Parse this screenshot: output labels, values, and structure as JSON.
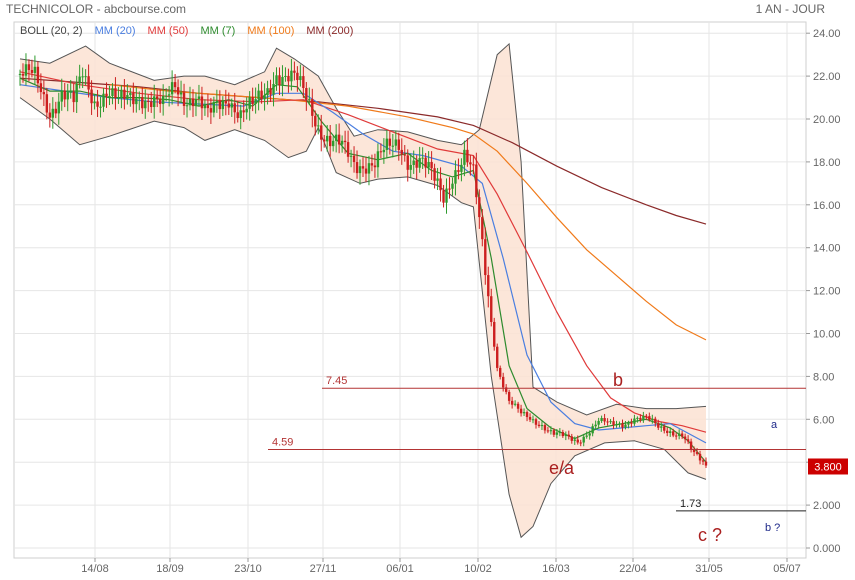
{
  "header": {
    "title": "TECHNICOLOR - abcbourse.com",
    "period": "1 AN - JOUR"
  },
  "chart_data": {
    "type": "line",
    "legend": [
      {
        "name": "BOLL (20, 2)",
        "color": "#555555"
      },
      {
        "name": "MM (20)",
        "color": "#4a7ee0"
      },
      {
        "name": "MM (50)",
        "color": "#e03a3a"
      },
      {
        "name": "MM (7)",
        "color": "#2e8b2e"
      },
      {
        "name": "MM (100)",
        "color": "#f07a1a"
      },
      {
        "name": "MM (200)",
        "color": "#8b2a2a"
      }
    ],
    "x_ticks": [
      "14/08",
      "18/09",
      "23/10",
      "27/11",
      "06/01",
      "10/02",
      "16/03",
      "22/04",
      "31/05",
      "05/07"
    ],
    "y_ticks": [
      0.0,
      2.0,
      4.0,
      6.0,
      8.0,
      10.0,
      12.0,
      14.0,
      16.0,
      18.0,
      20.0,
      22.0,
      24.0
    ],
    "y_tick_labels": [
      "0.000",
      "2.000",
      "4.000",
      "6.00",
      "8.00",
      "10.00",
      "12.00",
      "14.00",
      "16.00",
      "18.00",
      "20.00",
      "22.00",
      "24.00"
    ],
    "ylim": [
      0,
      24.8
    ],
    "last_price": "3.800",
    "colors": {
      "up": "#2e9a2e",
      "down": "#cc1f1f",
      "band": "#fbe2d2",
      "level": "#b33434",
      "price_tag": "#cc0000"
    },
    "levels": [
      {
        "label": "7.45",
        "value": 7.45
      },
      {
        "label": "4.59",
        "value": 4.59
      },
      {
        "label": "1.73",
        "value": 1.73
      }
    ],
    "annotations": [
      {
        "text": "b",
        "color": "#aa1f1f"
      },
      {
        "text": "e/a",
        "color": "#aa1f1f"
      },
      {
        "text": "c ?",
        "color": "#aa1f1f"
      },
      {
        "text": "a",
        "color": "#1f2a8a"
      },
      {
        "text": "b ?",
        "color": "#1f2a8a"
      }
    ],
    "close_series": [
      [
        0,
        22.1
      ],
      [
        5,
        21.8
      ],
      [
        10,
        20.5
      ],
      [
        14,
        21.3
      ],
      [
        18,
        20.6
      ],
      [
        21,
        22.0
      ],
      [
        25,
        21.0
      ],
      [
        29,
        21.3
      ],
      [
        33,
        20.6
      ],
      [
        37,
        21.0
      ],
      [
        40,
        21.3
      ],
      [
        44,
        20.9
      ],
      [
        48,
        20.4
      ],
      [
        52,
        21.6
      ],
      [
        55,
        21.2
      ],
      [
        59,
        21.0
      ],
      [
        63,
        19.9
      ],
      [
        66,
        20.6
      ],
      [
        70,
        21.2
      ],
      [
        74,
        20.2
      ],
      [
        78,
        20.4
      ],
      [
        82,
        21.2
      ],
      [
        86,
        22.3
      ],
      [
        89,
        21.9
      ],
      [
        93,
        21.6
      ],
      [
        97,
        20.8
      ],
      [
        101,
        19.6
      ],
      [
        104,
        18.9
      ],
      [
        108,
        18.5
      ],
      [
        112,
        18.0
      ],
      [
        116,
        18.1
      ],
      [
        119,
        17.9
      ],
      [
        123,
        18.4
      ],
      [
        127,
        18.9
      ],
      [
        130,
        18.3
      ],
      [
        134,
        18.0
      ],
      [
        138,
        17.2
      ],
      [
        142,
        16.5
      ],
      [
        145,
        17.6
      ],
      [
        149,
        18.2
      ],
      [
        152,
        17.2
      ],
      [
        156,
        13.0
      ],
      [
        160,
        8.5
      ],
      [
        164,
        6.8
      ],
      [
        168,
        6.2
      ],
      [
        172,
        6.0
      ],
      [
        175,
        5.8
      ],
      [
        179,
        5.3
      ],
      [
        183,
        5.1
      ],
      [
        187,
        5.0
      ],
      [
        190,
        5.4
      ],
      [
        194,
        5.9
      ],
      [
        198,
        5.7
      ],
      [
        202,
        5.8
      ],
      [
        206,
        6.1
      ],
      [
        210,
        6.0
      ],
      [
        214,
        5.6
      ],
      [
        218,
        5.5
      ],
      [
        222,
        5.3
      ],
      [
        226,
        4.3
      ],
      [
        230,
        3.8
      ]
    ],
    "ma7": [
      [
        0,
        21.9
      ],
      [
        10,
        21.3
      ],
      [
        20,
        21.3
      ],
      [
        30,
        21.0
      ],
      [
        40,
        21.0
      ],
      [
        50,
        20.9
      ],
      [
        60,
        20.6
      ],
      [
        70,
        20.9
      ],
      [
        78,
        20.6
      ],
      [
        86,
        21.6
      ],
      [
        93,
        21.5
      ],
      [
        101,
        19.9
      ],
      [
        110,
        18.4
      ],
      [
        120,
        18.1
      ],
      [
        130,
        18.4
      ],
      [
        138,
        17.6
      ],
      [
        145,
        17.3
      ],
      [
        152,
        17.6
      ],
      [
        158,
        13.5
      ],
      [
        164,
        8.5
      ],
      [
        170,
        6.5
      ],
      [
        178,
        5.6
      ],
      [
        186,
        5.1
      ],
      [
        194,
        5.6
      ],
      [
        202,
        5.8
      ],
      [
        210,
        6.0
      ],
      [
        218,
        5.6
      ],
      [
        224,
        5.0
      ],
      [
        230,
        4.0
      ]
    ],
    "ma20": [
      [
        0,
        21.6
      ],
      [
        15,
        21.3
      ],
      [
        30,
        21.0
      ],
      [
        45,
        20.8
      ],
      [
        60,
        20.7
      ],
      [
        75,
        20.6
      ],
      [
        86,
        21.2
      ],
      [
        95,
        21.2
      ],
      [
        105,
        20.3
      ],
      [
        115,
        19.3
      ],
      [
        125,
        18.5
      ],
      [
        135,
        18.3
      ],
      [
        148,
        17.8
      ],
      [
        155,
        17.0
      ],
      [
        162,
        13.5
      ],
      [
        170,
        9.0
      ],
      [
        178,
        6.8
      ],
      [
        186,
        5.8
      ],
      [
        194,
        5.5
      ],
      [
        202,
        5.6
      ],
      [
        210,
        5.7
      ],
      [
        218,
        5.8
      ],
      [
        230,
        4.9
      ]
    ],
    "ma50": [
      [
        0,
        22.2
      ],
      [
        20,
        21.6
      ],
      [
        40,
        21.2
      ],
      [
        60,
        20.9
      ],
      [
        80,
        20.8
      ],
      [
        95,
        20.9
      ],
      [
        110,
        20.2
      ],
      [
        125,
        19.4
      ],
      [
        140,
        18.6
      ],
      [
        152,
        18.3
      ],
      [
        160,
        16.5
      ],
      [
        170,
        13.8
      ],
      [
        180,
        11.0
      ],
      [
        190,
        8.5
      ],
      [
        198,
        7.0
      ],
      [
        206,
        6.3
      ],
      [
        214,
        5.9
      ],
      [
        222,
        5.7
      ],
      [
        230,
        5.4
      ]
    ],
    "ma100": [
      [
        30,
        21.6
      ],
      [
        50,
        21.3
      ],
      [
        70,
        21.1
      ],
      [
        90,
        20.9
      ],
      [
        110,
        20.6
      ],
      [
        130,
        20.1
      ],
      [
        145,
        19.6
      ],
      [
        152,
        19.3
      ],
      [
        160,
        18.5
      ],
      [
        170,
        17.0
      ],
      [
        180,
        15.4
      ],
      [
        190,
        13.9
      ],
      [
        200,
        12.7
      ],
      [
        210,
        11.5
      ],
      [
        220,
        10.4
      ],
      [
        230,
        9.7
      ]
    ],
    "ma200": [
      [
        0,
        21.9
      ],
      [
        20,
        21.7
      ],
      [
        40,
        21.5
      ],
      [
        60,
        21.2
      ],
      [
        80,
        21.0
      ],
      [
        100,
        20.8
      ],
      [
        120,
        20.5
      ],
      [
        140,
        20.1
      ],
      [
        152,
        19.7
      ],
      [
        165,
        18.9
      ],
      [
        180,
        17.8
      ],
      [
        195,
        16.8
      ],
      [
        210,
        16.0
      ],
      [
        220,
        15.5
      ],
      [
        230,
        15.1
      ]
    ],
    "boll_upper": [
      [
        0,
        22.8
      ],
      [
        10,
        22.6
      ],
      [
        22,
        23.4
      ],
      [
        30,
        22.6
      ],
      [
        45,
        21.8
      ],
      [
        55,
        22.0
      ],
      [
        62,
        22.0
      ],
      [
        72,
        21.6
      ],
      [
        82,
        22.2
      ],
      [
        86,
        23.3
      ],
      [
        92,
        22.8
      ],
      [
        100,
        22.0
      ],
      [
        106,
        20.5
      ],
      [
        112,
        19.2
      ],
      [
        120,
        19.5
      ],
      [
        130,
        19.4
      ],
      [
        140,
        19.0
      ],
      [
        148,
        18.8
      ],
      [
        154,
        19.5
      ],
      [
        160,
        23.0
      ],
      [
        164,
        23.5
      ],
      [
        168,
        18.0
      ],
      [
        172,
        7.5
      ],
      [
        180,
        6.8
      ],
      [
        190,
        6.2
      ],
      [
        200,
        6.7
      ],
      [
        210,
        6.5
      ],
      [
        220,
        6.5
      ],
      [
        230,
        6.6
      ]
    ],
    "boll_lower": [
      [
        0,
        21.0
      ],
      [
        10,
        20.0
      ],
      [
        20,
        18.8
      ],
      [
        30,
        19.2
      ],
      [
        45,
        19.9
      ],
      [
        55,
        19.6
      ],
      [
        62,
        19.0
      ],
      [
        72,
        19.5
      ],
      [
        82,
        19.0
      ],
      [
        90,
        18.2
      ],
      [
        96,
        18.5
      ],
      [
        100,
        19.6
      ],
      [
        106,
        17.5
      ],
      [
        114,
        17.0
      ],
      [
        120,
        17.2
      ],
      [
        130,
        17.3
      ],
      [
        140,
        16.9
      ],
      [
        148,
        16.1
      ],
      [
        152,
        15.9
      ],
      [
        158,
        8.0
      ],
      [
        164,
        2.5
      ],
      [
        168,
        0.5
      ],
      [
        172,
        1.0
      ],
      [
        178,
        3.0
      ],
      [
        186,
        4.3
      ],
      [
        196,
        4.9
      ],
      [
        206,
        5.0
      ],
      [
        216,
        4.6
      ],
      [
        224,
        3.5
      ],
      [
        230,
        3.2
      ]
    ]
  }
}
